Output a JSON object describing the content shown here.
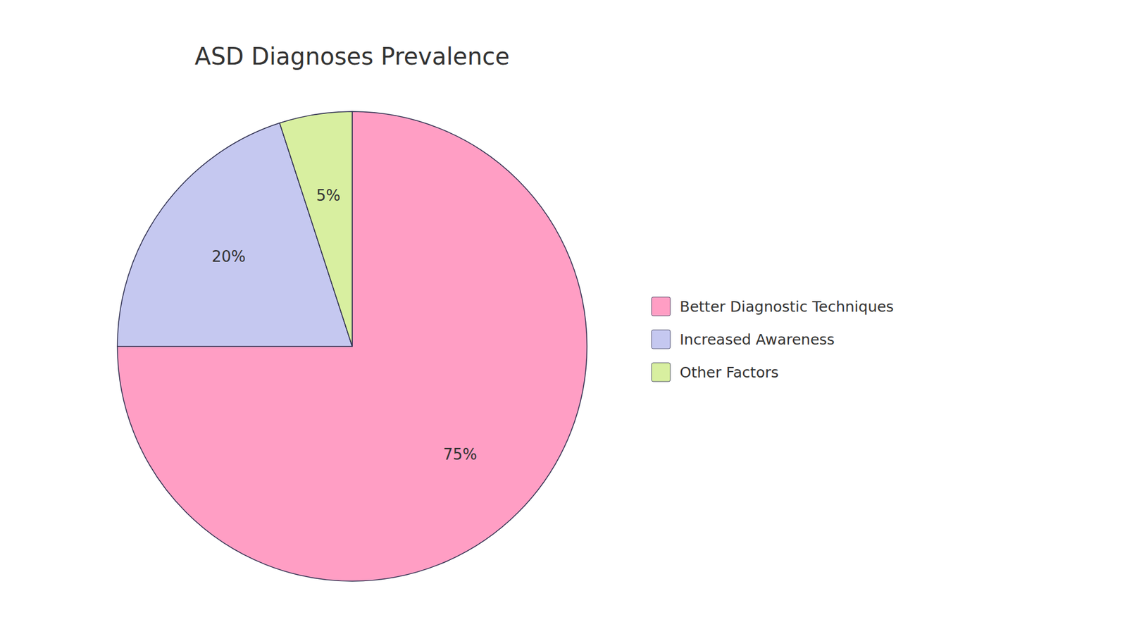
{
  "chart_data": {
    "type": "pie",
    "title": "ASD Diagnoses Prevalence",
    "categories": [
      "Better Diagnostic Techniques",
      "Increased Awareness",
      "Other Factors"
    ],
    "values": [
      75,
      20,
      5
    ],
    "value_labels": [
      "75%",
      "20%",
      "5%"
    ],
    "colors": [
      "#FF9EC4",
      "#C5C8F0",
      "#D8EFA0"
    ],
    "data_labels": true,
    "legend": "right"
  }
}
